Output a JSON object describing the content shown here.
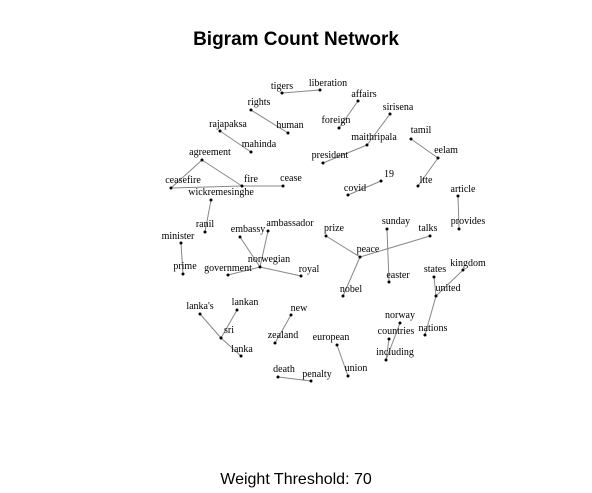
{
  "title": "Bigram Count Network",
  "subtitle": "Weight Threshold: 70",
  "nodes": [
    "tigers",
    "liberation",
    "affairs",
    "foreign",
    "rights",
    "human",
    "sirisena",
    "maithripala",
    "president",
    "rajapaksa",
    "mahinda",
    "tamil",
    "eelam",
    "ltte",
    "agreement",
    "ceasefire",
    "fire",
    "cease",
    "19",
    "covid",
    "article",
    "provides",
    "wickremesinghe",
    "ranil",
    "minister",
    "prime",
    "embassy",
    "ambassador",
    "norwegian",
    "government",
    "royal",
    "prize",
    "peace",
    "nobel",
    "sunday",
    "easter",
    "talks",
    "states",
    "kingdom",
    "united",
    "nations",
    "lanka's",
    "lankan",
    "sri",
    "lanka",
    "new",
    "zealand",
    "norway",
    "countries",
    "european",
    "including",
    "union",
    "death",
    "penalty"
  ],
  "edges": [
    [
      "tigers",
      "liberation"
    ],
    [
      "foreign",
      "affairs"
    ],
    [
      "rights",
      "human"
    ],
    [
      "president",
      "maithripala"
    ],
    [
      "maithripala",
      "sirisena"
    ],
    [
      "mahinda",
      "rajapaksa"
    ],
    [
      "tamil",
      "eelam"
    ],
    [
      "eelam",
      "ltte"
    ],
    [
      "agreement",
      "ceasefire"
    ],
    [
      "ceasefire",
      "fire"
    ],
    [
      "fire",
      "cease"
    ],
    [
      "agreement",
      "fire"
    ],
    [
      "covid",
      "19"
    ],
    [
      "article",
      "provides"
    ],
    [
      "wickremesinghe",
      "ranil"
    ],
    [
      "prime",
      "minister"
    ],
    [
      "embassy",
      "norwegian"
    ],
    [
      "ambassador",
      "norwegian"
    ],
    [
      "government",
      "norwegian"
    ],
    [
      "norwegian",
      "royal"
    ],
    [
      "prize",
      "peace"
    ],
    [
      "peace",
      "nobel"
    ],
    [
      "peace",
      "talks"
    ],
    [
      "sunday",
      "easter"
    ],
    [
      "states",
      "united"
    ],
    [
      "kingdom",
      "united"
    ],
    [
      "united",
      "nations"
    ],
    [
      "lanka's",
      "sri"
    ],
    [
      "lankan",
      "sri"
    ],
    [
      "sri",
      "lanka"
    ],
    [
      "new",
      "zealand"
    ],
    [
      "norway",
      "including"
    ],
    [
      "countries",
      "including"
    ],
    [
      "european",
      "union"
    ],
    [
      "death",
      "penalty"
    ]
  ]
}
